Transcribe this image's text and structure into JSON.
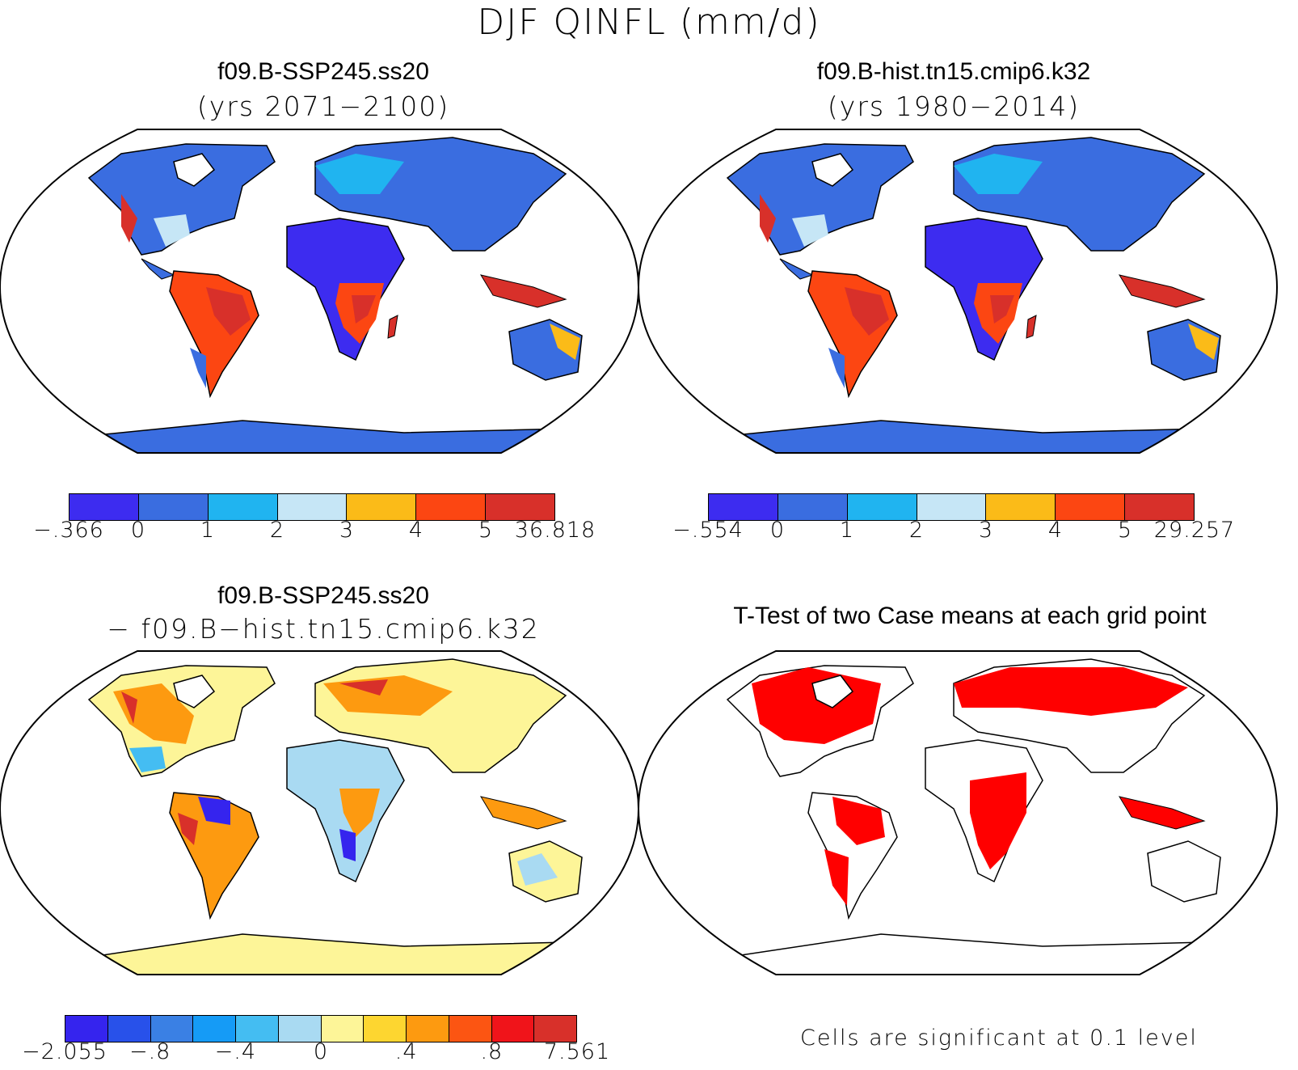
{
  "figure": {
    "title": "DJF QINFL (mm/d)"
  },
  "panels": [
    {
      "id": "top-left",
      "title": "f09.B-SSP245.ss20",
      "subtitle": "(yrs 2071−2100)",
      "colorbar": {
        "colors": [
          "#3d2cf0",
          "#3a6de0",
          "#20b4f0",
          "#c6e6f6",
          "#fbbb18",
          "#fc4612",
          "#d8302a"
        ],
        "labels": [
          "−.366",
          "0",
          "1",
          "2",
          "3",
          "4",
          "5",
          "36.818"
        ]
      }
    },
    {
      "id": "top-right",
      "title": "f09.B-hist.tn15.cmip6.k32",
      "subtitle": "(yrs 1980−2014)",
      "colorbar": {
        "colors": [
          "#3d2cf0",
          "#3a6de0",
          "#20b4f0",
          "#c6e6f6",
          "#fbbb18",
          "#fc4612",
          "#d8302a"
        ],
        "labels": [
          "−.554",
          "0",
          "1",
          "2",
          "3",
          "4",
          "5",
          "29.257"
        ]
      }
    },
    {
      "id": "bottom-left",
      "title": "f09.B-SSP245.ss20",
      "subtitle": "− f09.B−hist.tn15.cmip6.k32",
      "colorbar": {
        "colors": [
          "#3524ee",
          "#2851ea",
          "#3a80e4",
          "#159bf6",
          "#44bdf2",
          "#a9daf2",
          "#fdf598",
          "#fdd630",
          "#fd9a10",
          "#fc5512",
          "#f0141a",
          "#d8302a"
        ],
        "labels": [
          "−2.055",
          "−.8",
          "−.4",
          "0",
          ".4",
          ".8",
          "7.561"
        ]
      }
    },
    {
      "id": "bottom-right",
      "title": "T-Test of two Case means at each grid point",
      "note": "Cells are significant at 0.1 level",
      "color": "#ff0000"
    }
  ]
}
